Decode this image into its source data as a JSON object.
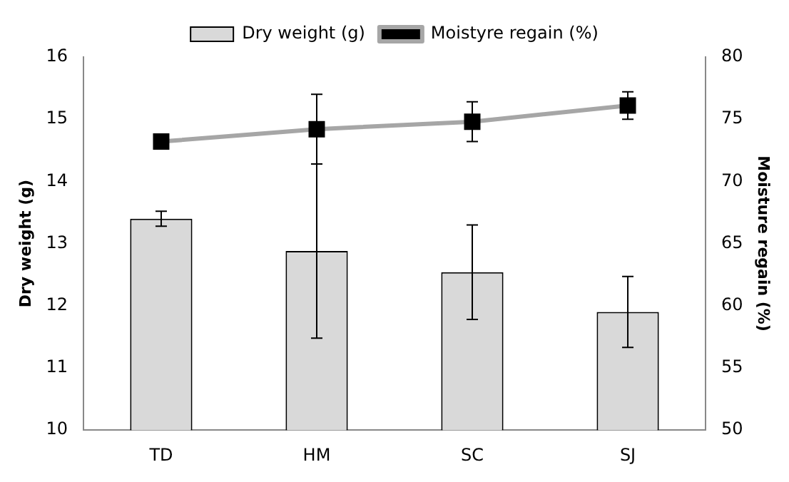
{
  "chart_data": {
    "type": "bar",
    "categories": [
      "TD",
      "HM",
      "SC",
      "SJ"
    ],
    "series": [
      {
        "name": "Dry weight (g)",
        "color": "#d9d9d9",
        "values": [
          13.4,
          12.88,
          12.54,
          11.9
        ],
        "errors": [
          0.12,
          1.4,
          0.76,
          0.57
        ]
      },
      {
        "name": "Moistyre regain (%)",
        "type": "line",
        "axis": "y2",
        "color": "#a6a6a6",
        "values": [
          73.2,
          74.2,
          74.8,
          76.1
        ],
        "errors": [
          null,
          2.8,
          1.6,
          1.1
        ]
      }
    ],
    "ylabel": "Dry weight (g)",
    "y2label": "Moisture regain (%)",
    "ylim": [
      10,
      16
    ],
    "yticks": [
      10,
      11,
      12,
      13,
      14,
      15,
      16
    ],
    "y2lim": [
      50,
      80
    ],
    "y2ticks": [
      50,
      55,
      60,
      65,
      70,
      75,
      80
    ],
    "legend": "top",
    "marker": "square",
    "grid": false
  }
}
